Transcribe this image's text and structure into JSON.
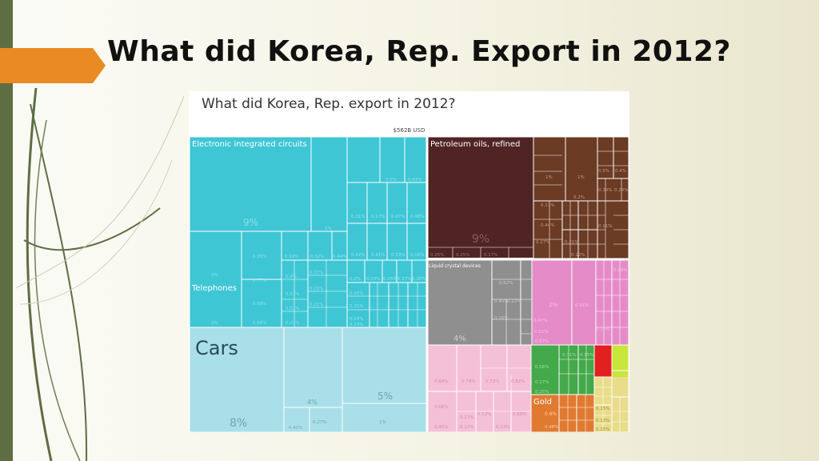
{
  "slide": {
    "title": "What did Korea, Rep. Export in 2012?"
  },
  "chart_data": {
    "type": "treemap",
    "title": "What did Korea, Rep. export in 2012?",
    "total_label": "$562B USD",
    "blocks": [
      {
        "name": "Electronic integrated circuits",
        "share": "9%",
        "color": "#3fc6d4"
      },
      {
        "name": "Telephones",
        "share": "2%",
        "color": "#3fc6d4"
      },
      {
        "name": "Cars",
        "share": "8%",
        "color": "#a9dfe9"
      },
      {
        "name": "Petroleum oils, refined",
        "share": "9%",
        "color": "#512424"
      },
      {
        "name": "Liquid crystal devices",
        "share": "4%",
        "color": "#8f8f8f"
      },
      {
        "name": "Gold",
        "share": "0.6%",
        "color": "#e07a30"
      }
    ],
    "sector_colors": {
      "electronics": "#3fc6d4",
      "vehicles": "#a9dfe9",
      "mineral_products": "#512424",
      "machinery": "#6b3b24",
      "instruments": "#8f8f8f",
      "chemicals": "#e58cc8",
      "metals": "#f4c0d6",
      "plastics": "#44a94b",
      "precious_metals": "#e07a30",
      "other_red": "#e32020",
      "other_yellow": "#c9e63a"
    },
    "tile_labels": [
      "1%",
      "0.5%",
      "0.83%",
      "0.31%",
      "0.17%",
      "0.47%",
      "0.48%",
      "0.42%",
      "0.41%",
      "0.33%",
      "0.16%",
      "0.2%",
      "0.29%",
      "0.26%",
      "0.27%",
      "0.26%",
      "0.2%",
      "0.25%",
      "0.25%",
      "0.24%",
      "0.23%",
      "0.21%",
      "2%",
      "2%",
      "0.95%",
      "0.77%",
      "0.69%",
      "0.66%",
      "0.59%",
      "0.4%",
      "0.37%",
      "0.32%",
      "0.21%",
      "0.52%",
      "0.44%",
      "0.27%",
      "0.23%",
      "0.21%",
      "4%",
      "5%",
      "1%",
      "0.41%",
      "0.27%",
      "0.25%",
      "0.25%",
      "0.17%",
      "1%",
      "1%",
      "0.5%",
      "0.4%",
      "0.2%",
      "0.34%",
      "0.24%",
      "0.17%",
      "0.44%",
      "0.11%",
      "0.27%",
      "0.21%",
      "0.12%",
      "0.62%",
      "0.45%",
      "0.22%",
      "0.16%",
      "2%",
      "0.47%",
      "0.91%",
      "0.51%",
      "0.33%",
      "0.67%",
      "0.18%",
      "0.84%",
      "0.74%",
      "0.72%",
      "0.82%",
      "0.66%",
      "0.68%",
      "0.17%",
      "0.12%",
      "0.12%",
      "0.45%",
      "0.13%",
      "0.31%",
      "0.15%",
      "0.56%",
      "0.17%",
      "0.25%",
      "0.6%",
      "0.48%",
      "0.15%",
      "0.13%",
      "0.15%"
    ]
  }
}
